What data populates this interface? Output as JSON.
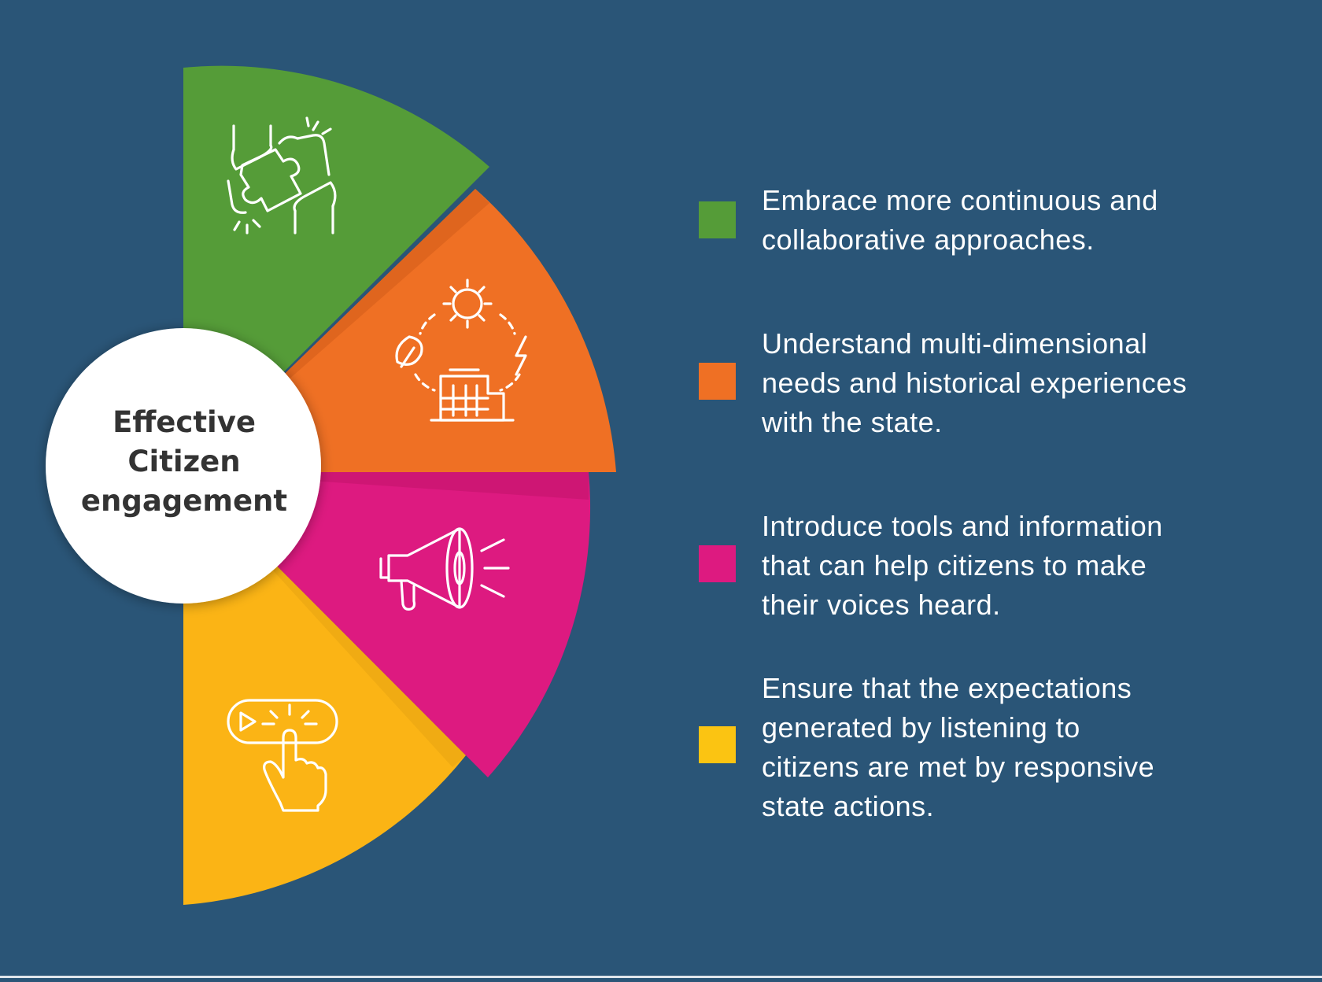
{
  "colors": {
    "background": "#2a5577",
    "green": "#559c38",
    "orange": "#ef7024",
    "magenta": "#dd1a80",
    "yellow": "#fbb415",
    "center_fill": "#ffffff",
    "center_text": "#333333"
  },
  "center": {
    "lines": [
      "Effective",
      "Citizen",
      "engagement"
    ]
  },
  "segments": [
    {
      "icon": "puzzle-hands-icon",
      "color": "#559c38",
      "lines": [
        "Embrace more continuous and",
        "collaborative approaches."
      ]
    },
    {
      "icon": "energy-cycle-icon",
      "color": "#ef7024",
      "lines": [
        "Understand multi-dimensional",
        "needs and historical experiences",
        "with the state."
      ]
    },
    {
      "icon": "megaphone-icon",
      "color": "#dd1a80",
      "lines": [
        "Introduce tools and information",
        "that can help citizens to make",
        "their voices heard."
      ]
    },
    {
      "icon": "click-button-icon",
      "color": "#fbb415",
      "lines": [
        "Ensure that the expectations",
        "generated by listening to",
        "citizens are met by responsive",
        "state actions."
      ]
    }
  ]
}
